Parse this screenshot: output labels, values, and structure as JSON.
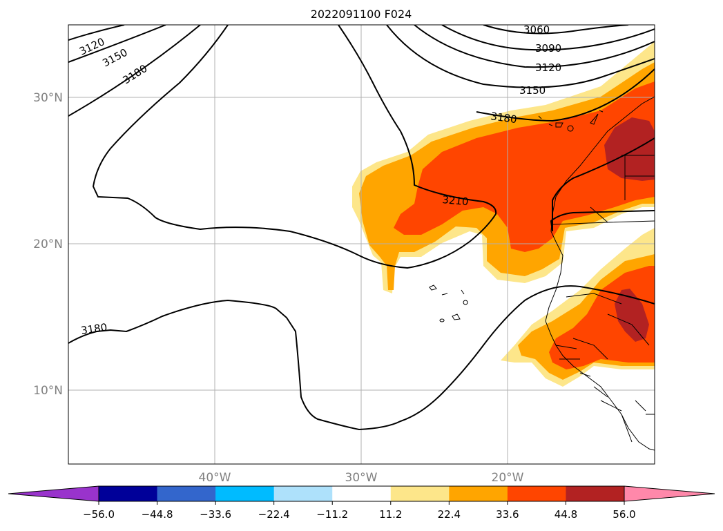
{
  "title": "2022091100 F024",
  "lat_labels": [
    "30°N",
    "20°N",
    "10°N"
  ],
  "lon_labels": [
    "40°W",
    "30°W",
    "20°W"
  ],
  "contour_labels": [
    "3060",
    "3090",
    "3120",
    "3150",
    "3180",
    "3210",
    "3120",
    "3150",
    "3180",
    "3180"
  ],
  "colorbar": {
    "colors": [
      "#9933cc",
      "#000099",
      "#3366cc",
      "#00bbff",
      "#aee1fb",
      "#ffffff",
      "#fde68a",
      "#ffa500",
      "#ff4500",
      "#b22222",
      "#ff88aa"
    ],
    "tick_labels": [
      "−56.0",
      "−44.8",
      "−33.6",
      "−22.4",
      "−11.2",
      "11.2",
      "22.4",
      "33.6",
      "44.8",
      "56.0"
    ]
  },
  "colors": {
    "light": "#fde68a",
    "orange": "#ffa500",
    "red_orange": "#ff4500",
    "dark_red": "#b22222",
    "grid": "#b0b0b0",
    "tick_text": "#808080"
  }
}
